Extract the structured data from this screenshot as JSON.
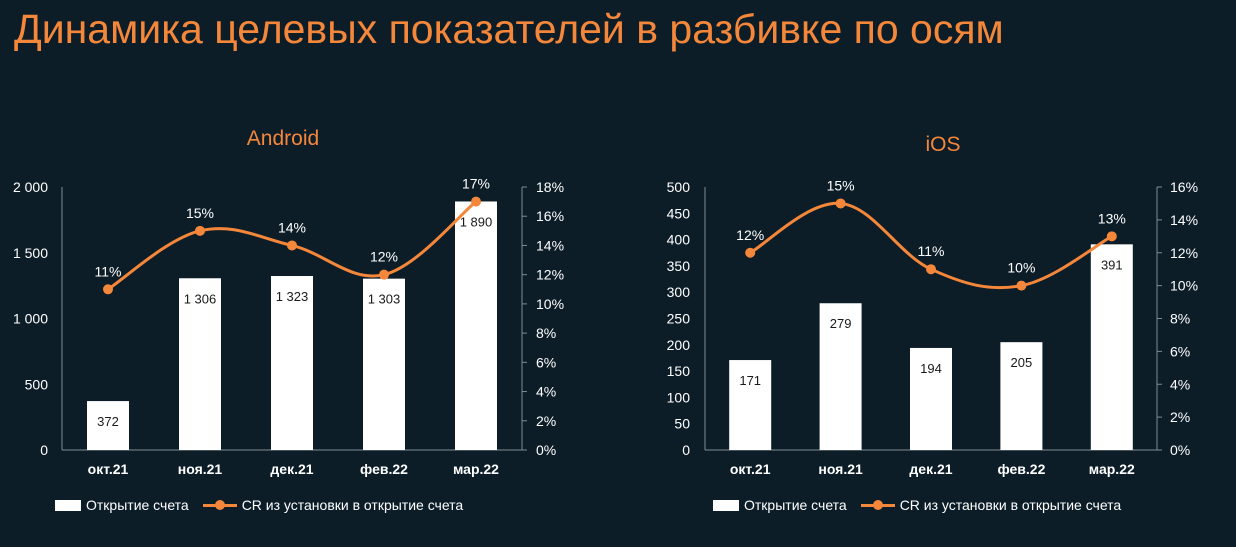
{
  "title": "Динамика целевых показателей в разбивке по осям",
  "colors": {
    "accent": "#f5873a",
    "bar": "#ffffff",
    "background": "#0c1d28",
    "text": "#ffffff"
  },
  "chart_data": [
    {
      "type": "bar",
      "title": "Android",
      "categories": [
        "окт.21",
        "ноя.21",
        "дек.21",
        "фев.22",
        "мар.22"
      ],
      "series": [
        {
          "name": "Открытие счета",
          "type": "bar",
          "axis": "left",
          "values": [
            372,
            1306,
            1323,
            1303,
            1890
          ],
          "labels": [
            "372",
            "1 306",
            "1 323",
            "1 303",
            "1 890"
          ]
        },
        {
          "name": "CR из установки в открытие счета",
          "type": "line",
          "axis": "right",
          "values": [
            11,
            15,
            14,
            12,
            17
          ],
          "labels": [
            "11%",
            "15%",
            "14%",
            "12%",
            "17%"
          ]
        }
      ],
      "left_axis": {
        "min": 0,
        "max": 2000,
        "ticks": [
          0,
          500,
          1000,
          1500,
          2000
        ],
        "tick_labels": [
          "0",
          "500",
          "1 000",
          "1 500",
          "2 000"
        ]
      },
      "right_axis": {
        "min": 0,
        "max": 18,
        "ticks": [
          0,
          2,
          4,
          6,
          8,
          10,
          12,
          14,
          16,
          18
        ],
        "tick_labels": [
          "0%",
          "2%",
          "4%",
          "6%",
          "8%",
          "10%",
          "12%",
          "14%",
          "16%",
          "18%"
        ]
      },
      "grid": false,
      "legend": "bottom"
    },
    {
      "type": "bar",
      "title": "iOS",
      "categories": [
        "окт.21",
        "ноя.21",
        "дек.21",
        "фев.22",
        "мар.22"
      ],
      "series": [
        {
          "name": "Открытие счета",
          "type": "bar",
          "axis": "left",
          "values": [
            171,
            279,
            194,
            205,
            391
          ],
          "labels": [
            "171",
            "279",
            "194",
            "205",
            "391"
          ]
        },
        {
          "name": "CR из установки в открытие счета",
          "type": "line",
          "axis": "right",
          "values": [
            12,
            15,
            11,
            10,
            13
          ],
          "labels": [
            "12%",
            "15%",
            "11%",
            "10%",
            "13%"
          ]
        }
      ],
      "left_axis": {
        "min": 0,
        "max": 500,
        "ticks": [
          0,
          50,
          100,
          150,
          200,
          250,
          300,
          350,
          400,
          450,
          500
        ],
        "tick_labels": [
          "0",
          "50",
          "100",
          "150",
          "200",
          "250",
          "300",
          "350",
          "400",
          "450",
          "500"
        ]
      },
      "right_axis": {
        "min": 0,
        "max": 16,
        "ticks": [
          0,
          2,
          4,
          6,
          8,
          10,
          12,
          14,
          16
        ],
        "tick_labels": [
          "0%",
          "2%",
          "4%",
          "6%",
          "8%",
          "10%",
          "12%",
          "14%",
          "16%"
        ]
      },
      "grid": false,
      "legend": "bottom"
    }
  ]
}
